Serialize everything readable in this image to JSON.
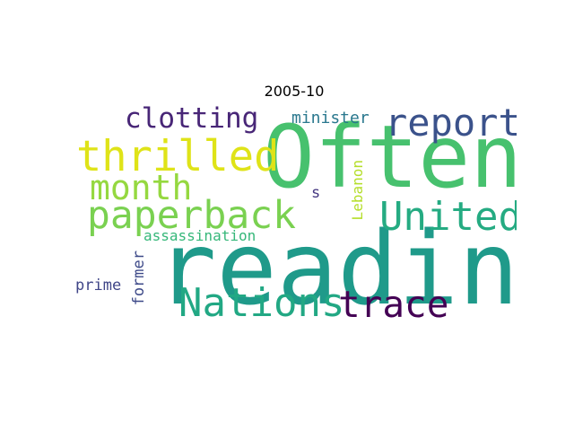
{
  "title": "2005-10",
  "words": [
    {
      "text": "Often",
      "color": "#47c16e",
      "orientation": "horizontal"
    },
    {
      "text": "reading",
      "color": "#1f9a8a",
      "orientation": "horizontal"
    },
    {
      "text": "thrilled",
      "color": "#dfe318",
      "orientation": "horizontal"
    },
    {
      "text": "paperback",
      "color": "#7ad151",
      "orientation": "horizontal"
    },
    {
      "text": "report",
      "color": "#3b528b",
      "orientation": "horizontal"
    },
    {
      "text": "United",
      "color": "#25ab82",
      "orientation": "horizontal"
    },
    {
      "text": "month",
      "color": "#95d840",
      "orientation": "horizontal"
    },
    {
      "text": "Nations",
      "color": "#22a884",
      "orientation": "horizontal"
    },
    {
      "text": "trace",
      "color": "#440154",
      "orientation": "horizontal"
    },
    {
      "text": "clotting",
      "color": "#482677",
      "orientation": "horizontal"
    },
    {
      "text": "minister",
      "color": "#2a788e",
      "orientation": "horizontal"
    },
    {
      "text": "assassination",
      "color": "#35b779",
      "orientation": "horizontal"
    },
    {
      "text": "prime",
      "color": "#404688",
      "orientation": "horizontal"
    },
    {
      "text": "former",
      "color": "#3e4a89",
      "orientation": "vertical"
    },
    {
      "text": "Lebanon",
      "color": "#b5de2b",
      "orientation": "vertical"
    },
    {
      "text": "s",
      "color": "#453781",
      "orientation": "horizontal"
    }
  ]
}
